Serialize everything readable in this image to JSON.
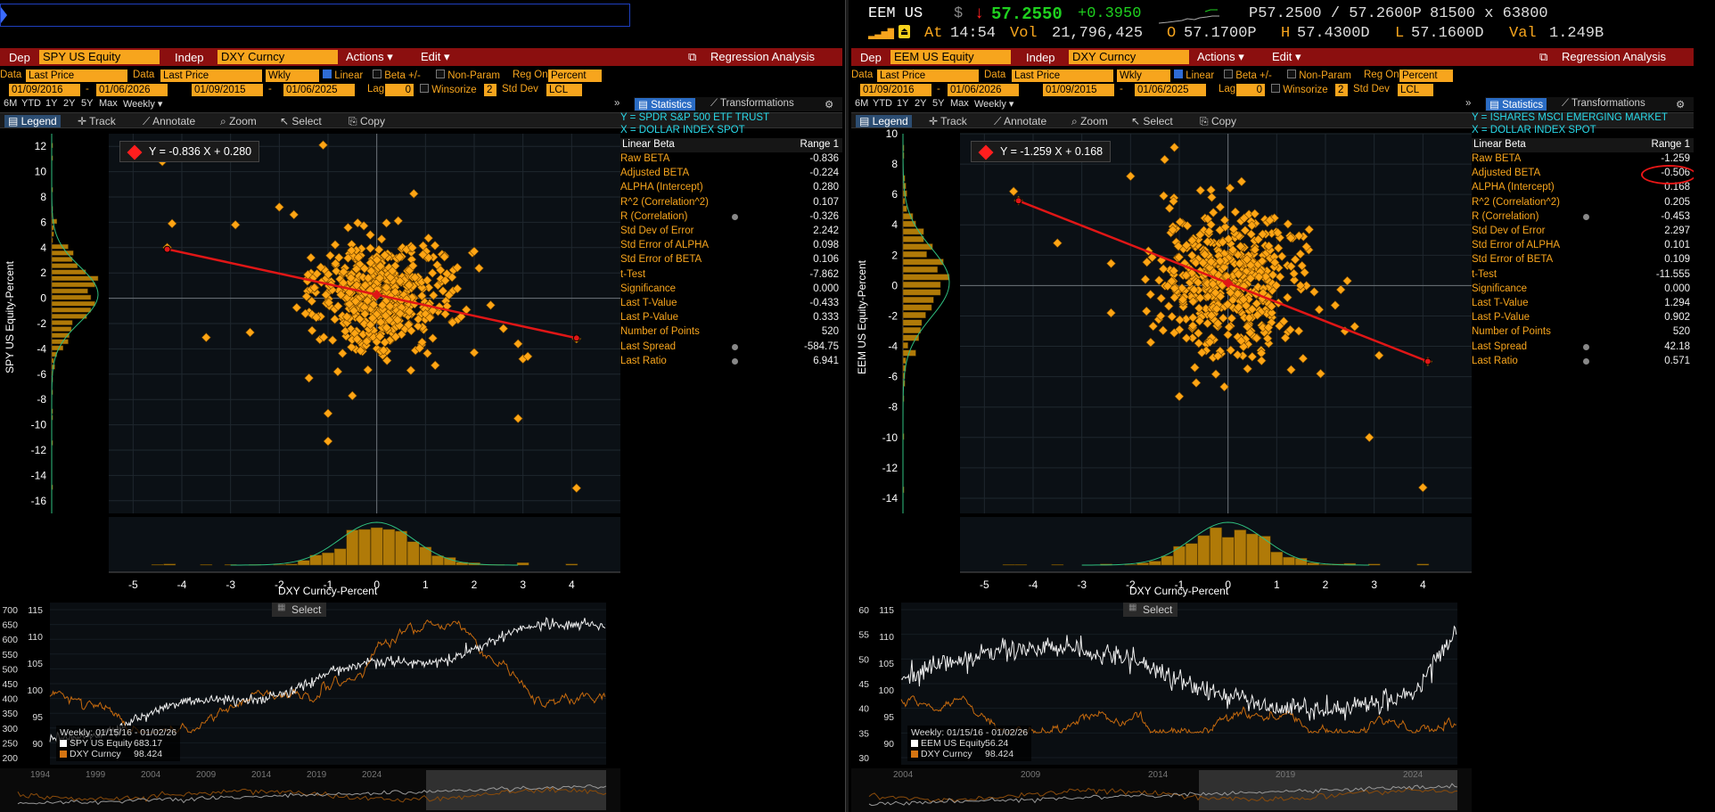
{
  "colors": {
    "orange": "#f7a51d",
    "cyan": "#29d8e8",
    "red": "#ff1e1e",
    "green": "#1fd11f",
    "white": "#ffffff",
    "fit": "#e01616",
    "normal": "#2fbf7f"
  },
  "panes": [
    {
      "id": "left",
      "show_quote": false,
      "bar": {
        "dep_label": "Dep",
        "dep_value": "SPY US Equity",
        "indep_label": "Indep",
        "indep_value": "DXY Curncy",
        "actions": "Actions ▾",
        "edit": "Edit ▾",
        "title": "Regression Analysis"
      },
      "data_row": {
        "data1_label": "Data",
        "data1": "Last Price",
        "data2_label": "Data",
        "data2": "Last Price",
        "freq": "Wkly",
        "linear": "Linear",
        "beta": "Beta +/-",
        "nonparam": "Non-Param",
        "reg_on": "Reg On",
        "reg_on_value": "Percent"
      },
      "date_row": {
        "d1": "01/09/2016",
        "d2": "01/06/2026",
        "d3": "01/09/2015",
        "d4": "01/06/2025",
        "lag_label": "Lag",
        "lag": "0",
        "winsorize": "Winsorize",
        "winsorize_value": "2",
        "stddev": "Std Dev",
        "stddev_value": "LCL"
      },
      "timebar": [
        "6M",
        "YTD",
        "1Y",
        "2Y",
        "5Y",
        "Max",
        "Weekly ▾"
      ],
      "toolbar": {
        "legend": "Legend",
        "track": "Track",
        "annotate": "Annotate",
        "zoom": "Zoom",
        "select": "Select",
        "copy": "Copy"
      },
      "tabs": {
        "statistics": "Statistics",
        "transformations": "Transformations"
      },
      "header": {
        "y": "Y = SPDR S&P 500 ETF TRUST",
        "x": "X = DOLLAR INDEX SPOT"
      },
      "table_head": {
        "left": "Linear Beta",
        "right": "Range 1"
      },
      "stats": [
        {
          "k": "Raw BETA",
          "v": "-0.836"
        },
        {
          "k": "Adjusted BETA",
          "v": "-0.224"
        },
        {
          "k": "ALPHA (Intercept)",
          "v": "0.280"
        },
        {
          "k": "R^2 (Correlation^2)",
          "v": "0.107"
        },
        {
          "k": "R (Correlation)",
          "v": "-0.326",
          "icon": true
        },
        {
          "k": "Std Dev of Error",
          "v": "2.242"
        },
        {
          "k": "Std Error of ALPHA",
          "v": "0.098"
        },
        {
          "k": "Std Error of BETA",
          "v": "0.106"
        },
        {
          "k": "t-Test",
          "v": "-7.862"
        },
        {
          "k": "Significance",
          "v": "0.000"
        },
        {
          "k": "Last T-Value",
          "v": "-0.433"
        },
        {
          "k": "Last P-Value",
          "v": "0.333"
        },
        {
          "k": "Number of Points",
          "v": "520"
        },
        {
          "k": "Last Spread",
          "v": "-584.75",
          "icon": true
        },
        {
          "k": "Last Ratio",
          "v": "6.941",
          "icon": true
        }
      ],
      "equation": "Y = -0.836 X + 0.280",
      "y_axis_label": "SPY US Equity-Percent",
      "x_axis_label": "DXY Curncy-Percent",
      "select_label": "Select",
      "lower_legend": {
        "title": "Weekly: 01/15/16 - 01/02/26",
        "s1": "SPY US Equity",
        "v1": "683.17",
        "s2": "DXY Curncy",
        "v2": "98.424"
      },
      "lower_left_ticks": [
        "700",
        "650",
        "600",
        "550",
        "500",
        "450",
        "400",
        "350",
        "300",
        "250",
        "200"
      ],
      "lower_right_ticks": [
        "115",
        "110",
        "105",
        "100",
        "95",
        "90"
      ],
      "minimap_years": [
        "1994",
        "1999",
        "2004",
        "2009",
        "2014",
        "2019",
        "2024"
      ]
    },
    {
      "id": "right",
      "show_quote": true,
      "quote": {
        "ticker": "EEM US",
        "currency": "$",
        "arrow": "↓",
        "price": "57.2550",
        "change": "+0.3950",
        "bidask": "P57.2500 / 57.2600P",
        "size": "81500 x 63800",
        "at_label": "At",
        "at": "14:54",
        "vol_label": "Vol",
        "vol": "21,796,425",
        "o_label": "O",
        "o": "57.1700P",
        "h_label": "H",
        "h": "57.4300D",
        "l_label": "L",
        "l": "57.1600D",
        "val_label": "Val",
        "val": "1.249B"
      },
      "bar": {
        "dep_label": "Dep",
        "dep_value": "EEM US Equity",
        "indep_label": "Indep",
        "indep_value": "DXY Curncy",
        "actions": "Actions ▾",
        "edit": "Edit ▾",
        "title": "Regression Analysis"
      },
      "data_row": {
        "data1_label": "Data",
        "data1": "Last Price",
        "data2_label": "Data",
        "data2": "Last Price",
        "freq": "Wkly",
        "linear": "Linear",
        "beta": "Beta +/-",
        "nonparam": "Non-Param",
        "reg_on": "Reg On",
        "reg_on_value": "Percent"
      },
      "date_row": {
        "d1": "01/09/2016",
        "d2": "01/06/2026",
        "d3": "01/09/2015",
        "d4": "01/06/2025",
        "lag_label": "Lag",
        "lag": "0",
        "winsorize": "Winsorize",
        "winsorize_value": "2",
        "stddev": "Std Dev",
        "stddev_value": "LCL"
      },
      "timebar": [
        "6M",
        "YTD",
        "1Y",
        "2Y",
        "5Y",
        "Max",
        "Weekly ▾"
      ],
      "toolbar": {
        "legend": "Legend",
        "track": "Track",
        "annotate": "Annotate",
        "zoom": "Zoom",
        "select": "Select",
        "copy": "Copy"
      },
      "tabs": {
        "statistics": "Statistics",
        "transformations": "Transformations"
      },
      "header": {
        "y": "Y = ISHARES MSCI EMERGING MARKET",
        "x": "X = DOLLAR INDEX SPOT"
      },
      "table_head": {
        "left": "Linear Beta",
        "right": "Range 1"
      },
      "stats": [
        {
          "k": "Raw BETA",
          "v": "-1.259"
        },
        {
          "k": "Adjusted BETA",
          "v": "-0.506"
        },
        {
          "k": "ALPHA (Intercept)",
          "v": "0.168"
        },
        {
          "k": "R^2 (Correlation^2)",
          "v": "0.205"
        },
        {
          "k": "R (Correlation)",
          "v": "-0.453",
          "icon": true
        },
        {
          "k": "Std Dev of Error",
          "v": "2.297"
        },
        {
          "k": "Std Error of ALPHA",
          "v": "0.101"
        },
        {
          "k": "Std Error of BETA",
          "v": "0.109"
        },
        {
          "k": "t-Test",
          "v": "-11.555"
        },
        {
          "k": "Significance",
          "v": "0.000"
        },
        {
          "k": "Last T-Value",
          "v": "1.294"
        },
        {
          "k": "Last P-Value",
          "v": "0.902"
        },
        {
          "k": "Number of Points",
          "v": "520"
        },
        {
          "k": "Last Spread",
          "v": "42.18",
          "icon": true
        },
        {
          "k": "Last Ratio",
          "v": "0.571",
          "icon": true
        }
      ],
      "equation": "Y = -1.259 X + 0.168",
      "y_axis_label": "EEM US Equity-Percent",
      "x_axis_label": "DXY Curncy-Percent",
      "select_label": "Select",
      "lower_legend": {
        "title": "Weekly: 01/15/16 - 01/02/26",
        "s1": "EEM US Equity",
        "v1": "56.24",
        "s2": "DXY Curncy",
        "v2": "98.424"
      },
      "lower_left_ticks": [
        "60",
        "55",
        "50",
        "45",
        "40",
        "35",
        "30"
      ],
      "lower_right_ticks": [
        "115",
        "110",
        "105",
        "100",
        "95",
        "90"
      ],
      "minimap_years": [
        "2004",
        "2009",
        "2014",
        "2019",
        "2024"
      ]
    }
  ],
  "chart_data": [
    {
      "type": "scatter",
      "title": "",
      "xlabel": "DXY Curncy-Percent",
      "ylabel": "SPY US Equity-Percent",
      "xlim": [
        -5.5,
        5
      ],
      "ylim": [
        -17,
        13
      ],
      "x_ticks": [
        -5,
        -4,
        -3,
        -2,
        -1,
        0,
        1,
        2,
        3,
        4
      ],
      "y_ticks": [
        12,
        10,
        8,
        6,
        4,
        2,
        0,
        -2,
        -4,
        -6,
        -8,
        -10,
        -12,
        -14,
        -16
      ],
      "fit": {
        "slope": -0.836,
        "intercept": 0.28,
        "x_range": [
          -4.3,
          4.1
        ]
      },
      "n_points": 520,
      "points": [
        [
          -4.3,
          4.0
        ],
        [
          -4.4,
          10.8
        ],
        [
          -4.2,
          5.9
        ],
        [
          -3.5,
          -3.1
        ],
        [
          -2.9,
          5.8
        ],
        [
          -2.6,
          -2.7
        ],
        [
          -2.0,
          7.2
        ],
        [
          -1.7,
          6.6
        ],
        [
          -1.1,
          12.1
        ],
        [
          -1.0,
          -9.1
        ],
        [
          -1.0,
          -11.3
        ],
        [
          -0.8,
          -5.8
        ],
        [
          -0.5,
          -7.7
        ],
        [
          0.7,
          -5.7
        ],
        [
          1.2,
          -5.3
        ],
        [
          2.0,
          -4.3
        ],
        [
          2.0,
          3.7
        ],
        [
          2.6,
          -2.4
        ],
        [
          2.9,
          -3.6
        ],
        [
          3.0,
          -4.8
        ],
        [
          2.9,
          -9.5
        ],
        [
          3.1,
          -4.6
        ],
        [
          4.1,
          -3.2
        ],
        [
          4.1,
          -15.0
        ]
      ],
      "cluster": {
        "center": [
          0,
          0.3
        ],
        "sd": [
          0.75,
          2.2
        ],
        "count": 480
      }
    },
    {
      "type": "scatter",
      "title": "",
      "xlabel": "DXY Curncy-Percent",
      "ylabel": "EEM US Equity-Percent",
      "xlim": [
        -5.5,
        5
      ],
      "ylim": [
        -15,
        10
      ],
      "x_ticks": [
        -5,
        -4,
        -3,
        -2,
        -1,
        0,
        1,
        2,
        3,
        4
      ],
      "y_ticks": [
        10,
        8,
        6,
        4,
        2,
        0,
        -2,
        -4,
        -6,
        -8,
        -10,
        -12,
        -14
      ],
      "fit": {
        "slope": -1.259,
        "intercept": 0.168,
        "x_range": [
          -4.3,
          4.1
        ]
      },
      "n_points": 520,
      "points": [
        [
          -4.4,
          6.2
        ],
        [
          -4.3,
          5.6
        ],
        [
          -3.5,
          2.8
        ],
        [
          -2.4,
          -1.8
        ],
        [
          -2.0,
          7.2
        ],
        [
          -1.1,
          9.1
        ],
        [
          -1.3,
          8.3
        ],
        [
          -1.0,
          -7.3
        ],
        [
          -0.6,
          -3.8
        ],
        [
          1.9,
          -5.8
        ],
        [
          2.2,
          -1.3
        ],
        [
          2.4,
          -3.0
        ],
        [
          2.6,
          -2.7
        ],
        [
          3.1,
          -4.6
        ],
        [
          2.9,
          -10.0
        ],
        [
          4.1,
          -5.0
        ],
        [
          4.0,
          -13.3
        ]
      ],
      "cluster": {
        "center": [
          0,
          0.2
        ],
        "sd": [
          0.75,
          2.3
        ],
        "count": 485
      }
    }
  ]
}
